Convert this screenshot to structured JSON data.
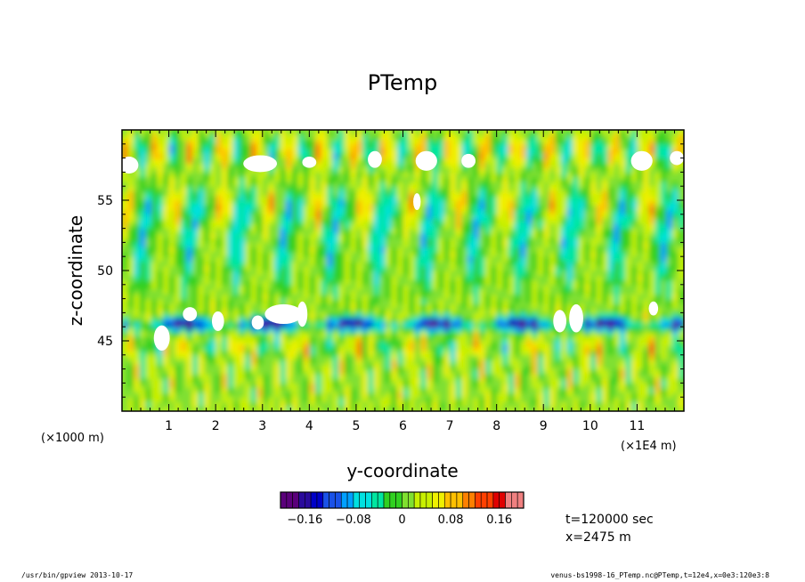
{
  "chart_data": {
    "type": "heatmap",
    "title": "PTemp",
    "xlabel": "y-coordinate",
    "ylabel": "z-coordinate",
    "x_unit_left": "(×1000 m)",
    "x_unit_right": "(×1E4 m)",
    "xlim": [
      0,
      120000
    ],
    "ylim": [
      40000,
      60000
    ],
    "x_ticks": [
      "1",
      "2",
      "3",
      "4",
      "5",
      "6",
      "7",
      "8",
      "9",
      "10",
      "11"
    ],
    "y_ticks": [
      "45",
      "50",
      "55"
    ],
    "colorbar": {
      "range": [
        -0.2,
        0.2
      ],
      "tick_labels": [
        "−0.16",
        "−0.08",
        "0",
        "0.08",
        "0.16"
      ],
      "tick_values": [
        -0.16,
        -0.08,
        0,
        0.08,
        0.16
      ]
    },
    "colormap": [
      "#5a007a",
      "#2a0a9c",
      "#0000c8",
      "#1a52e8",
      "#00a0ff",
      "#00e0e0",
      "#00e6a0",
      "#30d020",
      "#80e030",
      "#c8f000",
      "#f0f000",
      "#ffc000",
      "#ff8000",
      "#ff4000",
      "#e00000",
      "#f08080"
    ],
    "annotations": [
      "t=120000 sec",
      "x=2475 m"
    ]
  },
  "footer": {
    "left": "/usr/bin/gpview   2013-10-17",
    "right": "venus-bs1998-16_PTemp.nc@PTemp,t=12e4,x=0e3:120e3:8"
  }
}
